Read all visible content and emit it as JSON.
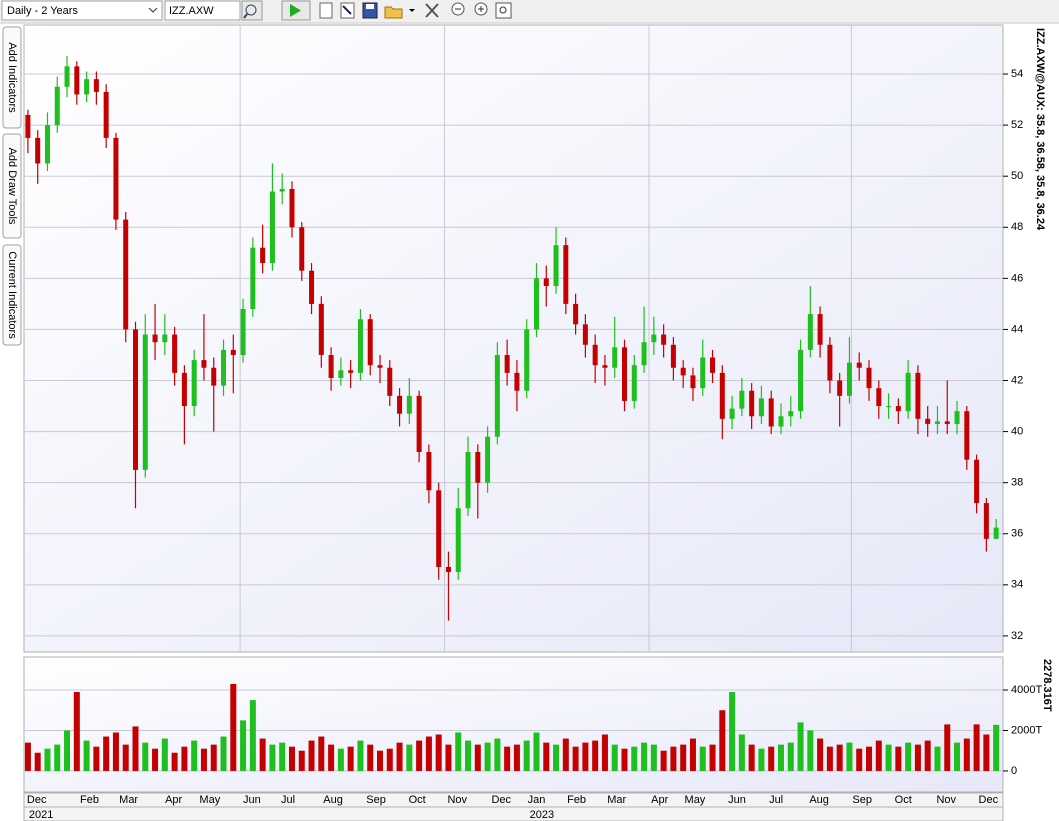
{
  "toolbar": {
    "period": "Daily - 2 Years",
    "symbol": "IZZ.AXW"
  },
  "sidebar": {
    "tabs": [
      "Add Indicators",
      "Add Draw Tools",
      "Current Indicators"
    ]
  },
  "chart_data": [
    {
      "type": "candlestick",
      "label": "IZZ.AXW@AUX: 35.8, 36.58, 35.8, 36.24",
      "label_color": "#0000cc",
      "up_color": "#1fbf1f",
      "down_color": "#c40000",
      "grid": true,
      "xlim": [
        -0.4,
        99.7
      ],
      "xgrid": [
        21.7,
        42.6,
        63.5,
        84.2
      ],
      "ylim": [
        31.37,
        55.92
      ],
      "yticks": [
        32,
        34,
        36,
        38,
        40,
        42,
        44,
        46,
        48,
        50,
        52,
        54
      ],
      "open": [
        52.4,
        51.5,
        50.5,
        52,
        53.5,
        54.3,
        53.2,
        53.8,
        53.3,
        51.5,
        48.3,
        44,
        38.5,
        43.8,
        43.5,
        43.8,
        42.3,
        41,
        42.8,
        42.5,
        41.8,
        43.2,
        43,
        44.8,
        47.2,
        46.6,
        49.4,
        49.5,
        48,
        46.3,
        45,
        43,
        42.1,
        42.4,
        42.3,
        44.4,
        42.6,
        42.5,
        41.4,
        40.7,
        41.4,
        39.2,
        37.7,
        34.7,
        34.5,
        37,
        39.2,
        38,
        39.8,
        43,
        42.3,
        41.6,
        44,
        46,
        45.7,
        47.3,
        45,
        44.2,
        43.4,
        42.6,
        42.5,
        43.3,
        41.2,
        42.6,
        43.5,
        43.8,
        43.4,
        42.5,
        42.2,
        41.7,
        42.9,
        42.3,
        40.5,
        40.9,
        41.6,
        40.6,
        41.3,
        40.2,
        40.6,
        40.8,
        43.2,
        44.6,
        43.4,
        42,
        41.4,
        42.7,
        42.5,
        41.7,
        41,
        41,
        40.8,
        42.3,
        40.5,
        40.3,
        40.4,
        40.3,
        40.8,
        38.9,
        37.2,
        35.8
      ],
      "high": [
        52.6,
        51.8,
        52.5,
        53.9,
        54.7,
        54.5,
        54.1,
        54.1,
        53.6,
        51.7,
        48.6,
        44.3,
        44.6,
        45,
        44.6,
        44.1,
        42.6,
        43.2,
        44.6,
        42.9,
        43.6,
        43.8,
        45.2,
        47.6,
        48.1,
        50.5,
        50.1,
        49.8,
        48.2,
        46.6,
        45.3,
        43.3,
        42.9,
        42.8,
        44.8,
        44.6,
        43,
        42.8,
        41.7,
        42.1,
        41.6,
        39.5,
        38,
        35.3,
        37.8,
        39.8,
        39.5,
        40.2,
        43.5,
        43.6,
        42.8,
        44.4,
        46.6,
        46.5,
        48,
        47.6,
        45.4,
        44.6,
        43.8,
        43,
        44.5,
        43.6,
        43,
        44.9,
        44.5,
        44.2,
        43.7,
        42.8,
        42.5,
        43.6,
        43.2,
        42.6,
        41.4,
        42.1,
        41.9,
        41.8,
        41.6,
        41.1,
        41.4,
        43.6,
        45.7,
        44.9,
        43.7,
        42.3,
        43.7,
        43.1,
        42.8,
        42,
        41.5,
        41.3,
        42.8,
        42.6,
        41,
        41,
        42,
        41.2,
        41,
        39.1,
        37.4,
        36.58
      ],
      "low": [
        50.9,
        49.7,
        50.2,
        51.7,
        53.1,
        52.8,
        52.9,
        52.8,
        51.1,
        47.9,
        43.5,
        37,
        38.2,
        42.8,
        43,
        41.8,
        39.5,
        40.6,
        42,
        40,
        41.4,
        41.5,
        42.7,
        44.5,
        46.2,
        46.3,
        48.9,
        47.6,
        45.9,
        44.6,
        42.5,
        41.6,
        41.8,
        41.7,
        42,
        42.2,
        41.9,
        41,
        40.2,
        40.3,
        38.8,
        37.2,
        34.2,
        32.6,
        34.2,
        36.7,
        36.6,
        37.6,
        39.5,
        41.8,
        40.8,
        41.3,
        43.7,
        44.9,
        45.4,
        44.6,
        43.8,
        42.9,
        41.9,
        41.8,
        42.1,
        40.8,
        40.9,
        42.3,
        43,
        42.9,
        42,
        41.7,
        41.2,
        41.4,
        41.9,
        39.7,
        40.1,
        40.6,
        40.1,
        40.3,
        39.9,
        39.9,
        40.2,
        40.5,
        42.9,
        42.9,
        41.5,
        40.2,
        41.1,
        42,
        41.2,
        40.5,
        40.5,
        40.3,
        40.5,
        39.9,
        39.8,
        39.9,
        39.9,
        39.9,
        38.5,
        36.8,
        35.3,
        35.8
      ],
      "close": [
        51.5,
        50.5,
        52,
        53.5,
        54.3,
        53.2,
        53.8,
        53.3,
        51.5,
        48.3,
        44,
        38.5,
        43.8,
        43.5,
        43.8,
        42.3,
        41,
        42.8,
        42.5,
        41.8,
        43.2,
        43,
        44.8,
        47.2,
        46.6,
        49.4,
        49.5,
        48,
        46.3,
        45,
        43,
        42.1,
        42.4,
        42.3,
        44.4,
        42.6,
        42.5,
        41.4,
        40.7,
        41.4,
        39.2,
        37.7,
        34.7,
        34.5,
        37,
        39.2,
        38,
        39.8,
        43,
        42.3,
        41.6,
        44,
        46,
        45.7,
        47.3,
        45,
        44.2,
        43.4,
        42.6,
        42.5,
        43.3,
        41.2,
        42.6,
        43.5,
        43.8,
        43.4,
        42.5,
        42.2,
        41.7,
        42.9,
        42.3,
        40.5,
        40.9,
        41.6,
        40.6,
        41.3,
        40.2,
        40.6,
        40.8,
        43.2,
        44.6,
        43.4,
        42,
        41.4,
        42.7,
        42.5,
        41.7,
        41,
        41,
        40.8,
        42.3,
        40.5,
        40.3,
        40.4,
        40.3,
        40.8,
        38.9,
        37.2,
        35.8,
        36.24
      ]
    },
    {
      "type": "bar",
      "label": "2278.316T",
      "label_color": "#008000",
      "up_color": "#1fbf1f",
      "down_color": "#c40000",
      "xlim": [
        -0.4,
        99.7
      ],
      "ylim": [
        -1040,
        5630
      ],
      "yticks": [
        0,
        {
          "value": 2000,
          "label": "2000T"
        },
        {
          "value": 4000,
          "label": "4000T"
        }
      ],
      "values": [
        1400,
        900,
        1100,
        1300,
        2000,
        3900,
        1500,
        1200,
        1700,
        1900,
        1300,
        2200,
        1400,
        1100,
        1600,
        900,
        1200,
        1500,
        1100,
        1300,
        1700,
        4300,
        2500,
        3500,
        1600,
        1300,
        1400,
        1200,
        1000,
        1500,
        1700,
        1300,
        1100,
        1200,
        1500,
        1300,
        1000,
        1100,
        1400,
        1300,
        1500,
        1700,
        1800,
        1300,
        1900,
        1500,
        1300,
        1400,
        1600,
        1200,
        1300,
        1500,
        1900,
        1400,
        1300,
        1600,
        1200,
        1400,
        1500,
        1800,
        1300,
        1100,
        1200,
        1400,
        1300,
        1000,
        1200,
        1300,
        1600,
        1200,
        1300,
        3000,
        3900,
        1800,
        1300,
        1100,
        1200,
        1300,
        1400,
        2400,
        2000,
        1600,
        1200,
        1300,
        1400,
        1100,
        1200,
        1500,
        1300,
        1200,
        1400,
        1300,
        1500,
        1200,
        2300,
        1400,
        1600,
        2300,
        1800,
        2278.316
      ],
      "xticks": [
        {
          "value": 0.9,
          "label": "Dec"
        },
        {
          "value": 6.3,
          "label": "Feb"
        },
        {
          "value": 10.3,
          "label": "Mar"
        },
        {
          "value": 14.9,
          "label": "Apr"
        },
        {
          "value": 18.6,
          "label": "May"
        },
        {
          "value": 22.9,
          "label": "Jun"
        },
        {
          "value": 26.6,
          "label": "Jul"
        },
        {
          "value": 31.2,
          "label": "Aug"
        },
        {
          "value": 35.6,
          "label": "Sep"
        },
        {
          "value": 39.8,
          "label": "Oct"
        },
        {
          "value": 43.9,
          "label": "Nov"
        },
        {
          "value": 48.4,
          "label": "Dec"
        },
        {
          "value": 52.0,
          "label": "Jan"
        },
        {
          "value": 56.1,
          "label": "Feb"
        },
        {
          "value": 60.2,
          "label": "Mar"
        },
        {
          "value": 64.6,
          "label": "Apr"
        },
        {
          "value": 68.2,
          "label": "May"
        },
        {
          "value": 72.5,
          "label": "Jun"
        },
        {
          "value": 76.5,
          "label": "Jul"
        },
        {
          "value": 80.9,
          "label": "Aug"
        },
        {
          "value": 85.3,
          "label": "Sep"
        },
        {
          "value": 89.5,
          "label": "Oct"
        },
        {
          "value": 93.9,
          "label": "Nov"
        },
        {
          "value": 98.2,
          "label": "Dec"
        }
      ],
      "year_ticks": [
        {
          "value": 0,
          "label": "2021"
        },
        {
          "value": 51.2,
          "label": "2023"
        }
      ]
    }
  ]
}
